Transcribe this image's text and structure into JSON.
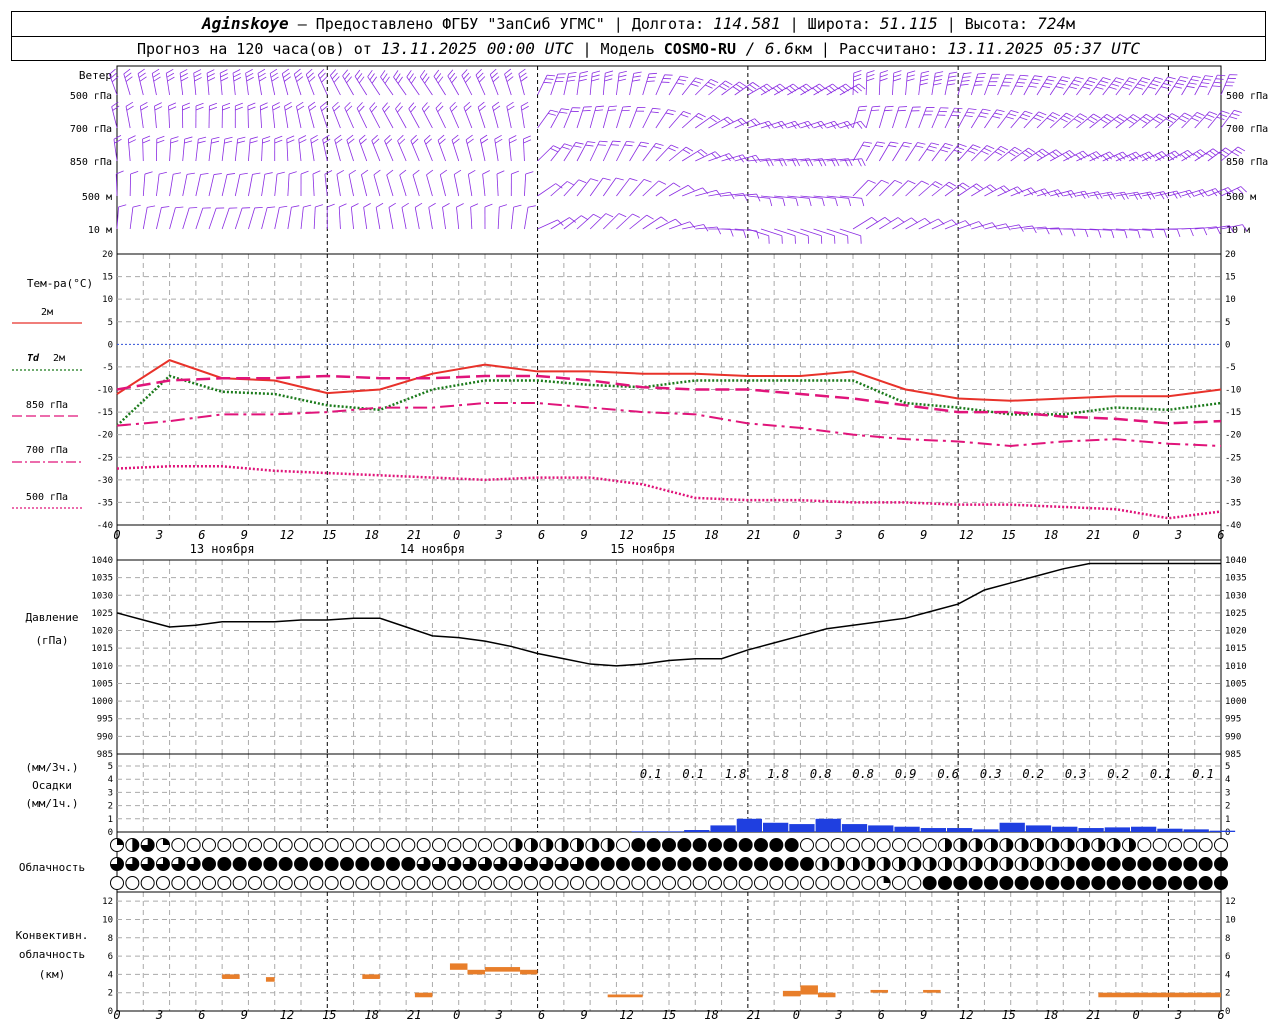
{
  "header": {
    "station": "Aginskoye",
    "provider": " – Предоставлено ФГБУ \"ЗапСиб УГМС\" | Долгота: ",
    "lon": "114.581",
    "lat_label": " | Широта: ",
    "lat": "51.115",
    "alt_label": " | Высота: ",
    "alt": "724",
    "alt_unit": "м",
    "forecast_prefix": "Прогноз на 120 часа(ов) от ",
    "forecast_time": "13.11.2025 00:00 UTC",
    "model_label": " | Модель ",
    "model": "COSMO-RU",
    "model_res": " / 6.6",
    "model_res_unit": "км",
    "calc_label": " | Рассчитано: ",
    "calc_time": "13.11.2025 05:37 UTC"
  },
  "colors": {
    "wind": "#8a2be2",
    "t2m": "#e8322a",
    "td": "#1a7a1a",
    "t850": "#e0147a",
    "t700": "#e0147a",
    "t500": "#e0147a",
    "zero_line": "#3050d8",
    "pressure": "#000000",
    "precip": "#1f3fe0",
    "convective": "#e87e2a",
    "grid": "#aaaaaa"
  },
  "time_axis": {
    "hour_ticks": [
      "0",
      "3",
      "6",
      "9",
      "12",
      "15",
      "18",
      "21",
      "0",
      "3",
      "6",
      "9",
      "12",
      "15",
      "18",
      "21",
      "0",
      "3",
      "6",
      "9",
      "12",
      "15",
      "18",
      "21",
      "0",
      "3",
      "6"
    ],
    "day_labels": [
      "13 ноября",
      "14 ноября",
      "15 ноября"
    ]
  },
  "wind_panel": {
    "title": "Ветер",
    "levels": [
      "500 гПа",
      "700 гПа",
      "850 гПа",
      "500 м",
      "10  м"
    ]
  },
  "chart_data": [
    {
      "type": "line",
      "title": "Тем-ра(°C)",
      "x_hours": [
        0,
        6,
        12,
        18,
        24,
        30,
        36,
        42,
        48,
        54,
        60,
        66,
        72,
        78,
        84,
        90,
        96,
        102,
        108,
        114,
        120,
        126
      ],
      "ylim": [
        -40,
        20
      ],
      "yticks": [
        20,
        15,
        10,
        5,
        0,
        -5,
        -10,
        -15,
        -20,
        -25,
        -30,
        -35,
        -40
      ],
      "series": [
        {
          "name": "2м",
          "style": "solid",
          "values": [
            -11,
            -3.5,
            -7.5,
            -8,
            -10.8,
            -10,
            -6.5,
            -4.5,
            -6,
            -6,
            -6.5,
            -6.5,
            -7,
            -7,
            -6,
            -10,
            -12,
            -12.5,
            -12,
            -11.5,
            -11.5,
            -10
          ]
        },
        {
          "name": "Td  2м",
          "style": "dotted",
          "values": [
            -18,
            -7,
            -10.5,
            -11,
            -13.5,
            -14.5,
            -10,
            -8,
            -8,
            -9,
            -9.5,
            -8,
            -8,
            -8,
            -8,
            -13,
            -14,
            -15.5,
            -15.5,
            -14,
            -14.5,
            -13
          ]
        },
        {
          "name": "850 гПа",
          "style": "dashed",
          "values": [
            -10,
            -8,
            -7.5,
            -7.5,
            -7,
            -7.5,
            -7.5,
            -7,
            -7,
            -8,
            -9.5,
            -10,
            -10,
            -11,
            -12,
            -13.5,
            -15,
            -15,
            -16,
            -16.5,
            -17.5,
            -17
          ]
        },
        {
          "name": "700 гПа",
          "style": "dashdot",
          "values": [
            -18,
            -17,
            -15.5,
            -15.5,
            -15,
            -14,
            -14,
            -13,
            -13,
            -14,
            -15,
            -15.5,
            -17.5,
            -18.5,
            -20,
            -21,
            -21.5,
            -22.5,
            -21.5,
            -21,
            -22,
            -22.5
          ]
        },
        {
          "name": "500 гПа",
          "style": "fine",
          "values": [
            -27.5,
            -27,
            -27,
            -28,
            -28.5,
            -29,
            -29.5,
            -30,
            -29.5,
            -29.5,
            -31,
            -34,
            -34.5,
            -34.5,
            -35,
            -35,
            -35.5,
            -35.5,
            -36,
            -36.5,
            -38.5,
            -37
          ]
        }
      ]
    },
    {
      "type": "line",
      "title": "Давление",
      "unit": "(гПа)",
      "x_hours": [
        0,
        3,
        6,
        9,
        12,
        15,
        18,
        21,
        24,
        27,
        30,
        33,
        36,
        39,
        42,
        45,
        48,
        51,
        54,
        57,
        60,
        63,
        66,
        69,
        72,
        75,
        78,
        81,
        84,
        87,
        90,
        93,
        96,
        99,
        102,
        105,
        108,
        111,
        114,
        117,
        120,
        123,
        126
      ],
      "ylim": [
        985,
        1040
      ],
      "yticks": [
        1040,
        1035,
        1030,
        1025,
        1020,
        1015,
        1010,
        1005,
        1000,
        995,
        990,
        985
      ],
      "series": [
        {
          "name": "",
          "values": [
            1025,
            1023,
            1021,
            1021.5,
            1022.5,
            1022.5,
            1022.5,
            1023,
            1023,
            1023.5,
            1023.5,
            1021,
            1018.5,
            1018,
            1017,
            1015.5,
            1013.5,
            1012,
            1010.5,
            1010,
            1010.5,
            1011.5,
            1012,
            1012,
            1014.5,
            1016.5,
            1018.5,
            1020.5,
            1021.5,
            1022.5,
            1023.5,
            1025.5,
            1027.5,
            1031.5,
            1033.5,
            1035.5,
            1037.5,
            1039,
            1039,
            1039,
            1039,
            1039,
            1039
          ]
        }
      ]
    },
    {
      "type": "bar",
      "title": "Осадки",
      "unit_3h": "(мм/3ч.)",
      "unit_1h": "(мм/1ч.)",
      "ylim": [
        0,
        5
      ],
      "yticks": [
        5,
        4,
        3,
        2,
        1,
        0
      ],
      "totals_3h": [
        "0.1",
        "0.1",
        "1.8",
        "1.8",
        "0.8",
        "0.8",
        "0.9",
        "0.6",
        "0.3",
        "0.2",
        "0.3",
        "0.2",
        "0.1",
        "0.1"
      ],
      "x_hours": [
        60,
        63,
        66,
        69,
        72,
        75,
        78,
        81,
        84,
        87,
        90,
        93,
        96,
        99,
        102,
        105,
        108,
        111,
        114,
        117,
        120,
        123,
        126
      ],
      "values_1h": [
        0.05,
        0.05,
        0.15,
        0.5,
        1.0,
        0.7,
        0.6,
        1.0,
        0.6,
        0.5,
        0.4,
        0.3,
        0.3,
        0.2,
        0.7,
        0.5,
        0.4,
        0.3,
        0.35,
        0.4,
        0.25,
        0.2,
        0.1
      ]
    },
    {
      "type": "table",
      "title": "Облачность",
      "rows": 3,
      "note": "cloud cover symbols per hour"
    },
    {
      "type": "bar",
      "title": "Конвективн. облачность",
      "unit": "(км)",
      "ylim": [
        0,
        13
      ],
      "yticks": [
        12,
        10,
        8,
        6,
        4,
        2,
        0
      ],
      "segments": [
        {
          "start": 12,
          "end": 14,
          "base": 3.5,
          "top": 4
        },
        {
          "start": 17,
          "end": 18,
          "base": 3.2,
          "top": 3.7
        },
        {
          "start": 28,
          "end": 30,
          "base": 3.5,
          "top": 4
        },
        {
          "start": 34,
          "end": 36,
          "base": 1.5,
          "top": 2
        },
        {
          "start": 38,
          "end": 40,
          "base": 4.5,
          "top": 5.2
        },
        {
          "start": 40,
          "end": 42,
          "base": 4,
          "top": 4.5
        },
        {
          "start": 42,
          "end": 46,
          "base": 4.3,
          "top": 4.8
        },
        {
          "start": 46,
          "end": 48,
          "base": 4,
          "top": 4.5
        },
        {
          "start": 56,
          "end": 60,
          "base": 1.5,
          "top": 1.8
        },
        {
          "start": 76,
          "end": 78,
          "base": 1.6,
          "top": 2.2
        },
        {
          "start": 78,
          "end": 80,
          "base": 1.8,
          "top": 2.8
        },
        {
          "start": 80,
          "end": 82,
          "base": 1.5,
          "top": 2
        },
        {
          "start": 86,
          "end": 88,
          "base": 2,
          "top": 2.3
        },
        {
          "start": 92,
          "end": 94,
          "base": 2,
          "top": 2.3
        },
        {
          "start": 112,
          "end": 126,
          "base": 1.5,
          "top": 2
        }
      ]
    }
  ],
  "panels": {
    "temp_title": "Тем-ра(°C)",
    "legend_2m": "2м",
    "legend_td": "Td",
    "legend_td2": "2м",
    "legend_850": "850 гПа",
    "legend_700": "700 гПа",
    "legend_500": "500 гПа",
    "pres_title": "Давление",
    "pres_unit": "(гПа)",
    "precip_unit3": "(мм/3ч.)",
    "precip_title": "Осадки",
    "precip_unit1": "(мм/1ч.)",
    "cloud_title": "Облачность",
    "conv_title1": "Конвективн.",
    "conv_title2": "облачность",
    "conv_unit": "(км)"
  }
}
